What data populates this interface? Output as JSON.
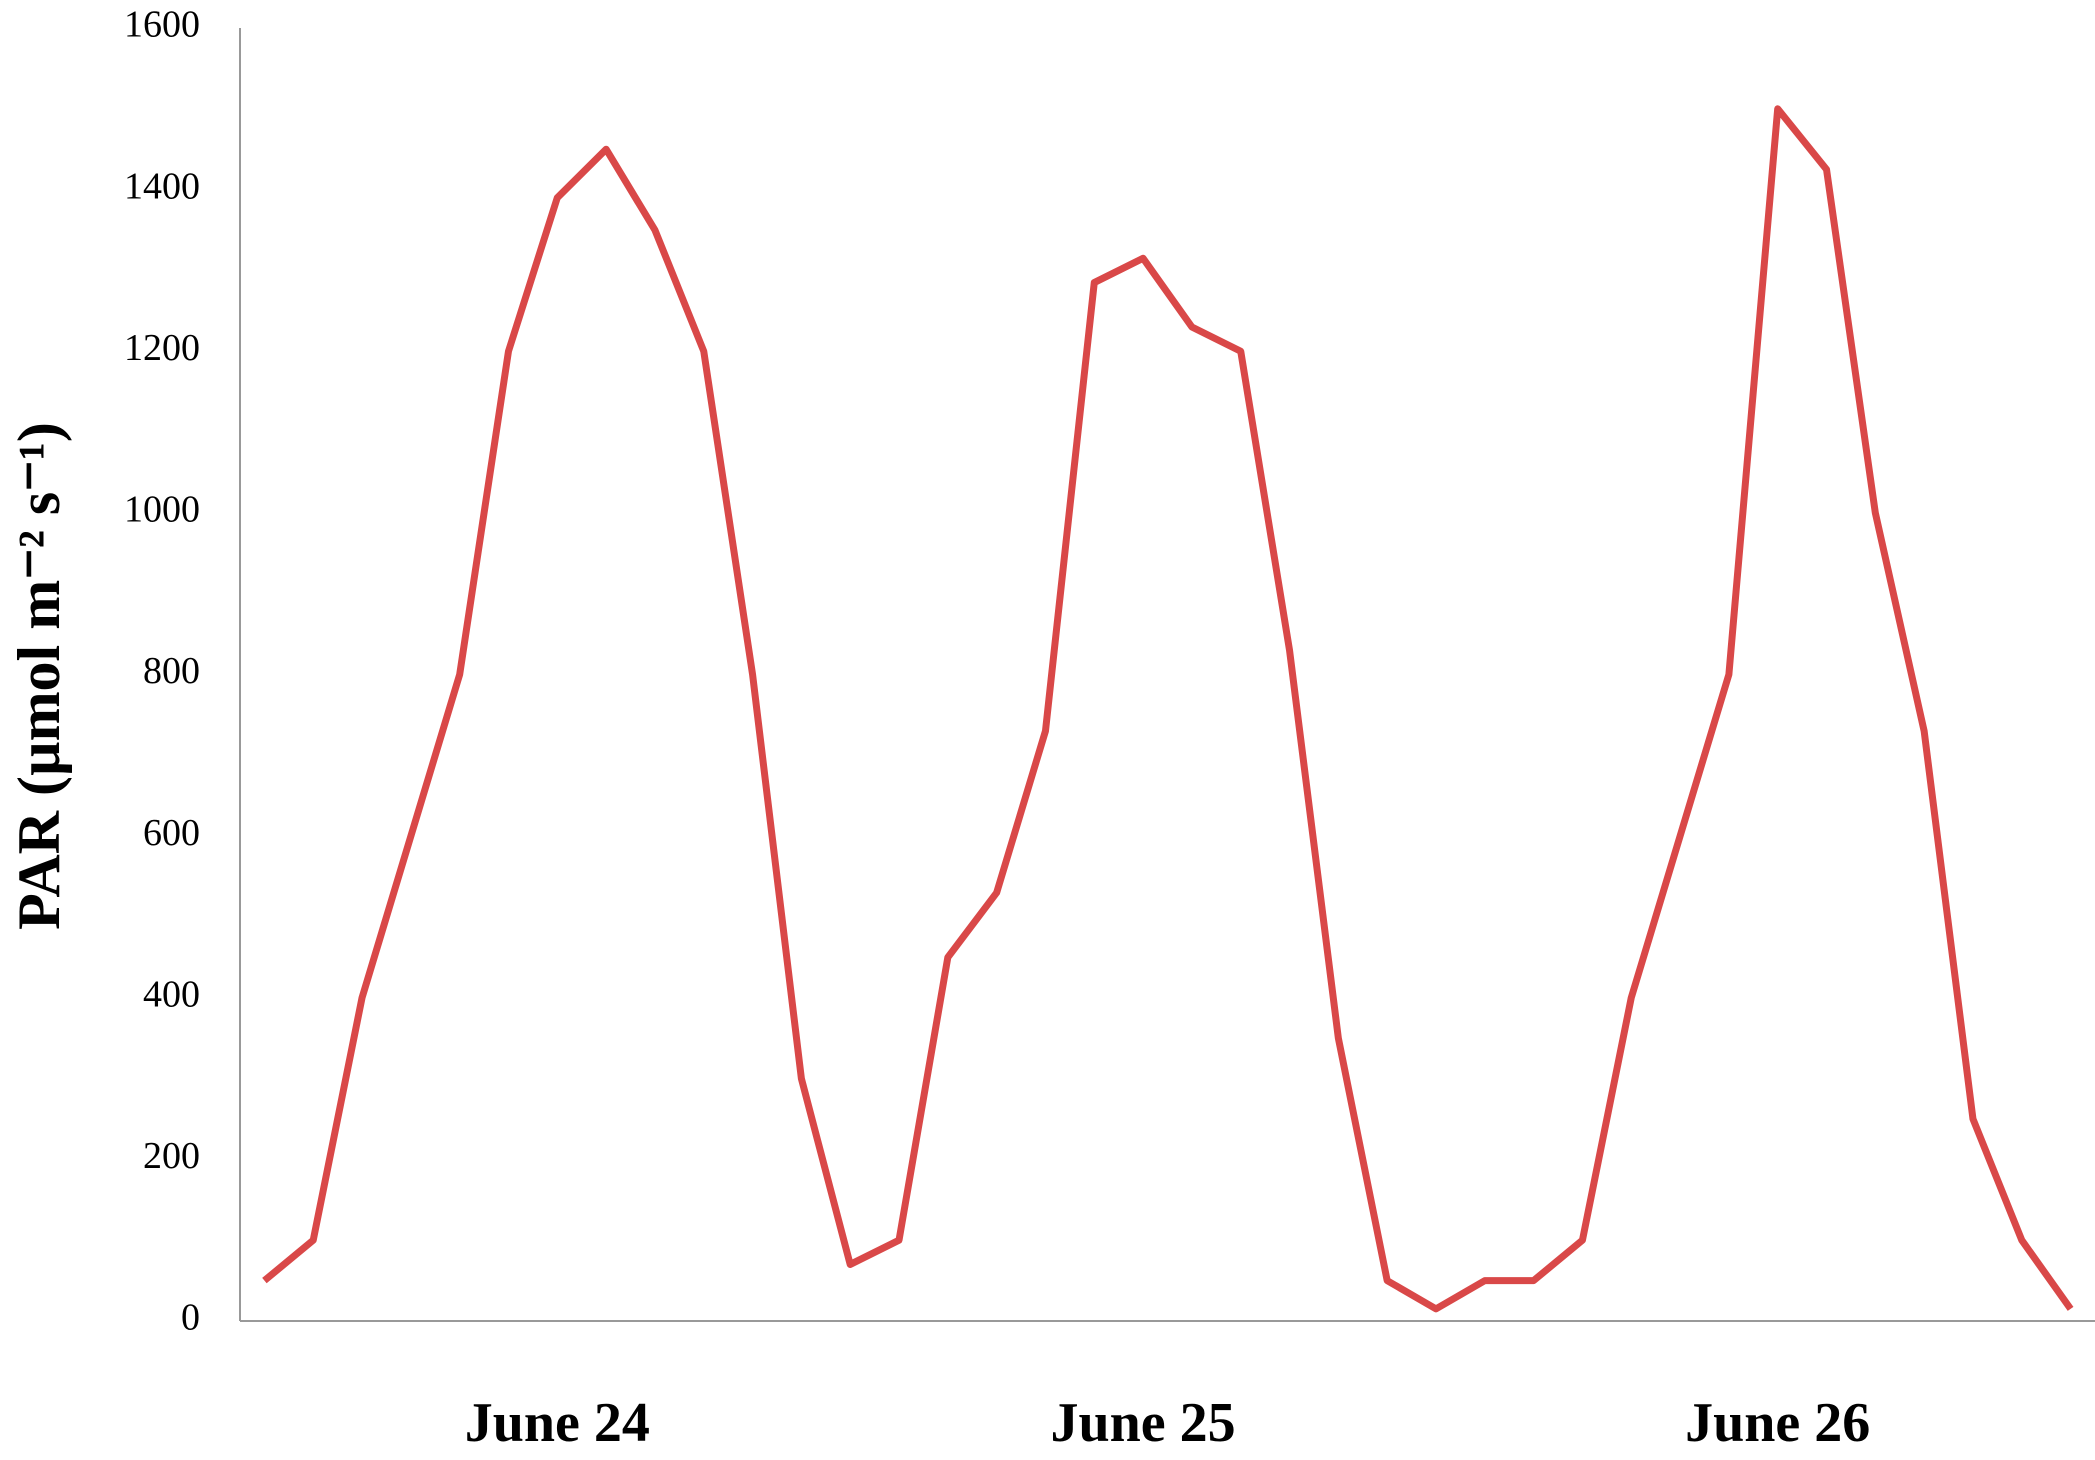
{
  "chart_data": {
    "type": "line",
    "ylabel": "PAR (µmol m⁻² s⁻¹)",
    "categories": [
      null,
      null,
      null,
      null,
      null,
      null,
      "June 24",
      null,
      null,
      null,
      null,
      null,
      null,
      null,
      null,
      null,
      null,
      null,
      "June 25",
      null,
      null,
      null,
      null,
      null,
      null,
      null,
      null,
      null,
      null,
      null,
      null,
      "June 26",
      null,
      null,
      null,
      null,
      null,
      null
    ],
    "series": [
      {
        "color": "#d94848",
        "values": [
          50,
          100,
          400,
          600,
          800,
          1200,
          1390,
          1450,
          1350,
          1200,
          800,
          300,
          70,
          100,
          450,
          530,
          730,
          1285,
          1315,
          1230,
          1200,
          830,
          350,
          50,
          15,
          50,
          50,
          100,
          400,
          600,
          800,
          1500,
          1425,
          1000,
          730,
          250,
          100,
          15
        ]
      }
    ],
    "ylim": [
      0,
      1600
    ],
    "yticks": [
      0,
      200,
      400,
      600,
      800,
      1000,
      1200,
      1400,
      1600
    ],
    "grid": false
  }
}
